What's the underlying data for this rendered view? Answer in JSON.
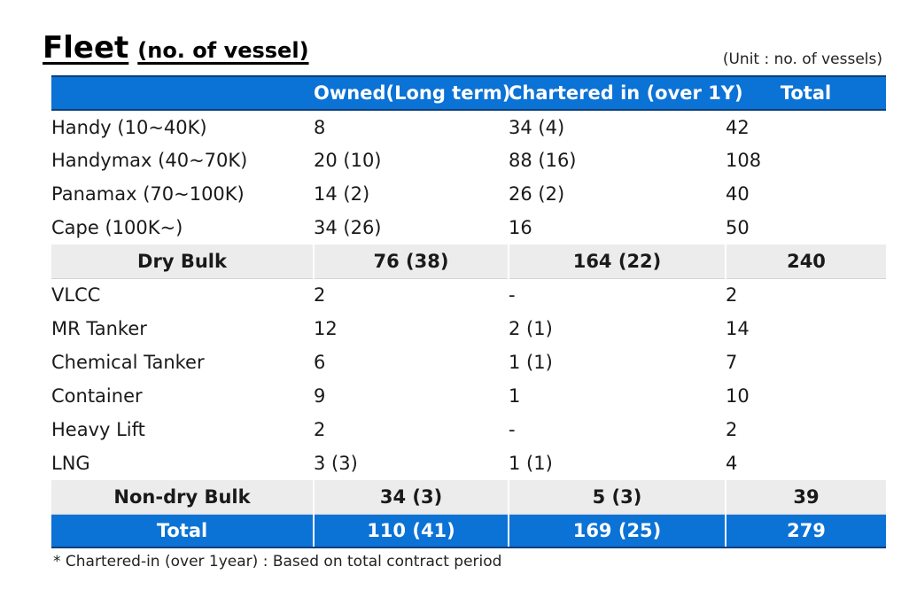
{
  "title": {
    "main": "Fleet",
    "sub": "(no. of vessel)"
  },
  "unit_note": "(Unit : no. of vessels)",
  "table": {
    "headers": [
      "",
      "Owned(Long term)",
      "Chartered in (over 1Y)",
      "Total"
    ],
    "rows": [
      {
        "type": "item",
        "cells": [
          "Handy (10~40K)",
          "8",
          "34 (4)",
          "42"
        ]
      },
      {
        "type": "item",
        "cells": [
          "Handymax (40~70K)",
          "20 (10)",
          "88 (16)",
          "108"
        ]
      },
      {
        "type": "item",
        "cells": [
          "Panamax (70~100K)",
          "14 (2)",
          "26 (2)",
          "40"
        ]
      },
      {
        "type": "item",
        "cells": [
          "Cape (100K~)",
          "34 (26)",
          "16",
          "50"
        ]
      },
      {
        "type": "subtotal",
        "cells": [
          "Dry Bulk",
          "76 (38)",
          "164 (22)",
          "240"
        ]
      },
      {
        "type": "item",
        "cells": [
          "VLCC",
          "2",
          "-",
          "2"
        ]
      },
      {
        "type": "item",
        "cells": [
          "MR Tanker",
          "12",
          "2 (1)",
          "14"
        ]
      },
      {
        "type": "item",
        "cells": [
          "Chemical Tanker",
          "6",
          "1 (1)",
          "7"
        ]
      },
      {
        "type": "item",
        "cells": [
          "Container",
          "9",
          "1",
          "10"
        ]
      },
      {
        "type": "item",
        "cells": [
          "Heavy Lift",
          "2",
          "-",
          "2"
        ]
      },
      {
        "type": "item",
        "cells": [
          "LNG",
          "3 (3)",
          "1 (1)",
          "4"
        ]
      },
      {
        "type": "subtotal",
        "cells": [
          "Non-dry Bulk",
          "34 (3)",
          "5 (3)",
          "39"
        ]
      },
      {
        "type": "grand",
        "cells": [
          "Total",
          "110 (41)",
          "169 (25)",
          "279"
        ]
      }
    ]
  },
  "footnote": "* Chartered-in (over 1year) : Based on total contract period",
  "colors": {
    "header_blue": "#0b72d6",
    "header_border": "#0a3f7a",
    "subtotal_gray": "#ececec"
  }
}
